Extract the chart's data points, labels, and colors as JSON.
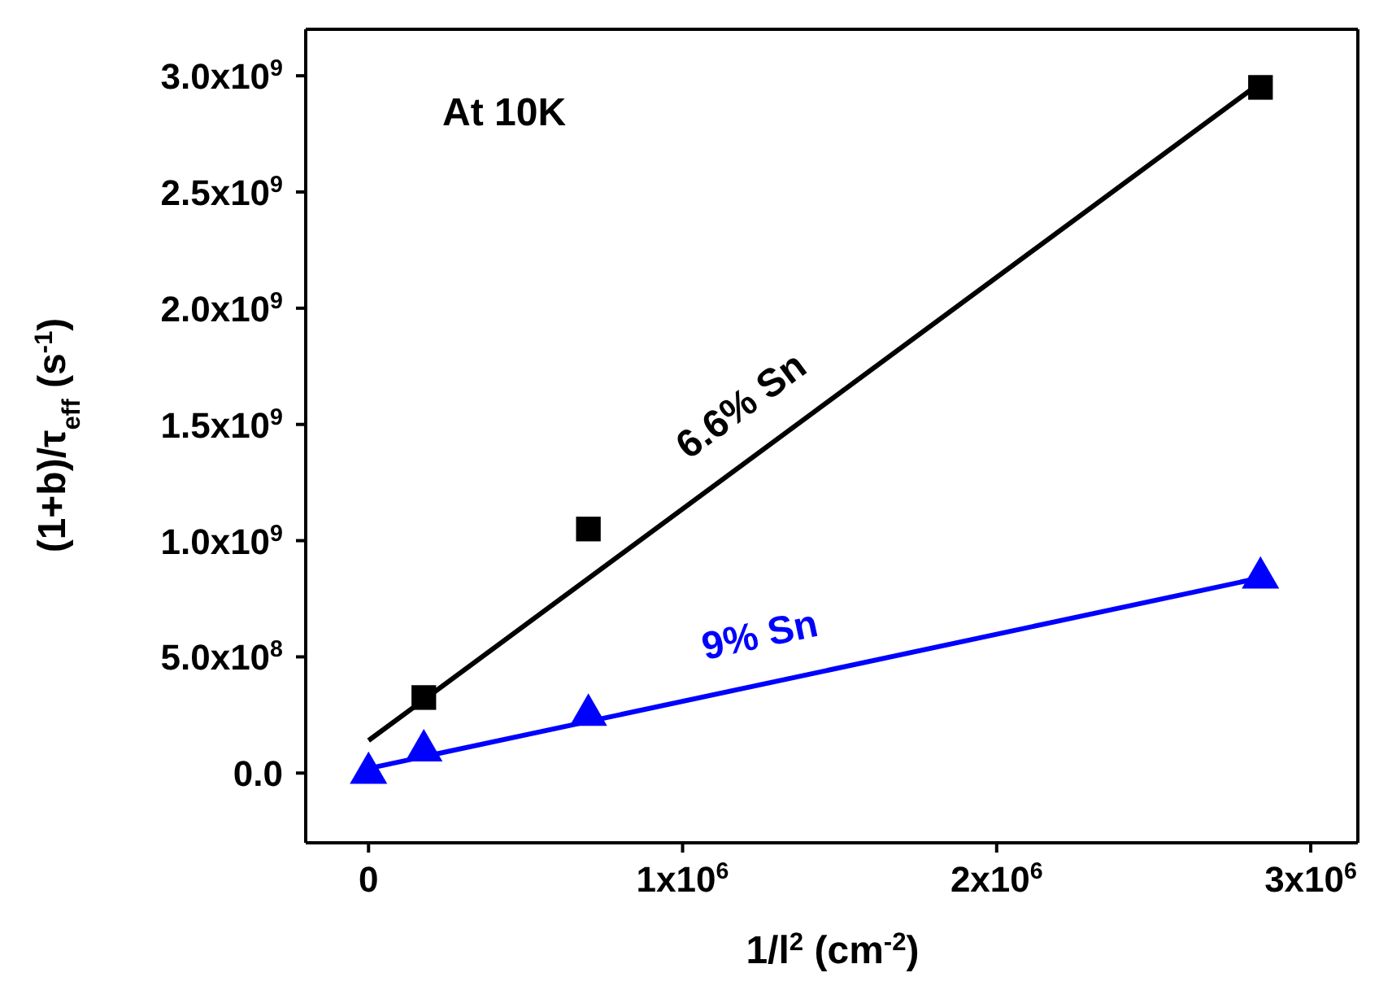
{
  "chart_data": {
    "type": "scatter",
    "xlabel": "1/l$^{2}$ (cm$^{-2}$)",
    "ylabel": "(1+b)/τ$_{eff}$ (s$^{-1}$)",
    "annotations": [
      "At 10K"
    ],
    "xlim": [
      -200000,
      3150000
    ],
    "ylim": [
      -300000000,
      3200000000
    ],
    "xticks": [
      {
        "value": 0,
        "label": "0"
      },
      {
        "value": 1000000,
        "label": "1x10$^{6}$"
      },
      {
        "value": 2000000,
        "label": "2x10$^{6}$"
      },
      {
        "value": 3000000,
        "label": "3x10$^{6}$"
      }
    ],
    "yticks": [
      {
        "value": 0,
        "label": "0.0"
      },
      {
        "value": 500000000,
        "label": "5.0x10$^{8}$"
      },
      {
        "value": 1000000000,
        "label": "1.0x10$^{9}$"
      },
      {
        "value": 1500000000,
        "label": "1.5x10$^{9}$"
      },
      {
        "value": 2000000000,
        "label": "2.0x10$^{9}$"
      },
      {
        "value": 2500000000,
        "label": "2.5x10$^{9}$"
      },
      {
        "value": 3000000000,
        "label": "3.0x10$^{9}$"
      }
    ],
    "series": [
      {
        "marker": "square",
        "color": "#000000",
        "x": [
          176000,
          700000,
          2840000
        ],
        "values": [
          325000000,
          1050000000,
          2950000000
        ]
      },
      {
        "marker": "triangle",
        "color": "#0000ff",
        "x": [
          0,
          176000,
          700000,
          2840000
        ],
        "values": [
          0,
          97000000,
          250000000,
          840000000
        ]
      },
      {
        "type": "line",
        "marker": "none",
        "name": "6.6% Sn",
        "color": "#000000",
        "x": [
          0,
          2840000
        ],
        "values": [
          140000000,
          2970000000
        ]
      },
      {
        "type": "line",
        "marker": "none",
        "name": "9% Sn",
        "color": "#0000ff",
        "x": [
          0,
          2840000
        ],
        "values": [
          20000000,
          840000000
        ]
      }
    ]
  }
}
